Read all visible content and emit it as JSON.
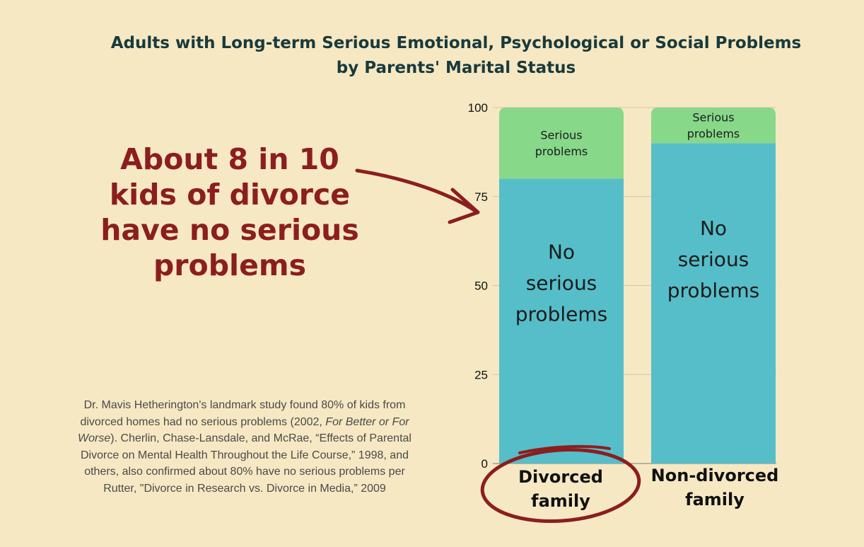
{
  "chart_data": {
    "type": "bar",
    "stacked": true,
    "title": "Adults with Long-term Serious Emotional, Psychological or Social Problems",
    "subtitle": "by Parents' Marital Status",
    "categories": [
      "Divorced family",
      "Non-divorced family"
    ],
    "category_lines": [
      [
        "Divorced",
        "family"
      ],
      [
        "Non-divorced",
        "family"
      ]
    ],
    "series": [
      {
        "name": "No serious problems",
        "values": [
          80,
          90
        ],
        "color": "#56bec9",
        "label_lines": [
          "No",
          "serious",
          "problems"
        ]
      },
      {
        "name": "Serious problems",
        "values": [
          20,
          10
        ],
        "color": "#88d88a",
        "label_lines": [
          "Serious",
          "problems"
        ]
      }
    ],
    "ylim": [
      0,
      100
    ],
    "yticks": [
      "0",
      "25",
      "50",
      "75",
      "100"
    ],
    "grid": true,
    "xlabel": "",
    "ylabel": ""
  },
  "callout": {
    "lines": [
      "About 8 in 10",
      "kids of divorce",
      "have no serious",
      "problems"
    ],
    "color": "#8b1e1e"
  },
  "source": {
    "part1": "Dr. Mavis Hetherington's landmark study found 80% of kids from divorced homes had no serious problems (2002, ",
    "italic": "For Better or For Worse",
    "part2": "). Cherlin, Chase-Lansdale, and McRae, “Effects of Parental Divorce on Mental Health Throughout the Life Course,” 1998, and others, also confirmed about 80% have no serious problems per Rutter, \"Divorce in Research vs. Divorce in Media,” 2009"
  },
  "colors": {
    "background": "#f6e8c3",
    "title": "#183a3c",
    "annotation": "#8b1e1e"
  }
}
